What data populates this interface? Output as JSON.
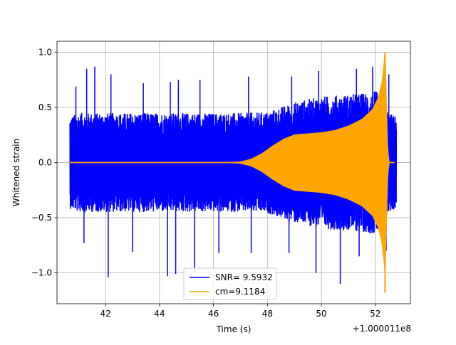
{
  "chart_data": {
    "type": "line",
    "xlabel": "Time (s)",
    "ylabel": "Whitened strain",
    "offset_text": "+1.000011e8",
    "xlim": [
      40.2,
      53.3
    ],
    "ylim": [
      -1.28,
      1.1
    ],
    "grid": true,
    "legend_position": "lower center",
    "xticks": [
      42,
      44,
      46,
      48,
      50,
      52
    ],
    "xtick_labels": [
      "42",
      "44",
      "46",
      "48",
      "50",
      "52"
    ],
    "yticks": [
      -1.0,
      -0.5,
      0.0,
      0.5,
      1.0
    ],
    "ytick_labels": [
      "−1.0",
      "−0.5",
      "0.0",
      "0.5",
      "1.0"
    ],
    "series": [
      {
        "name": "SNR= 9.5932",
        "color": "#0000ff",
        "kind": "noise",
        "x_range": [
          40.68,
          52.78
        ],
        "typical_envelope": [
          [
            40.68,
            0.42
          ],
          [
            41.0,
            0.45
          ],
          [
            42.0,
            0.45
          ],
          [
            43.0,
            0.45
          ],
          [
            44.0,
            0.45
          ],
          [
            45.0,
            0.45
          ],
          [
            46.0,
            0.45
          ],
          [
            47.0,
            0.45
          ],
          [
            48.0,
            0.46
          ],
          [
            49.0,
            0.55
          ],
          [
            50.0,
            0.6
          ],
          [
            51.0,
            0.62
          ],
          [
            51.5,
            0.63
          ],
          [
            52.0,
            0.65
          ],
          [
            52.3,
            0.6
          ],
          [
            52.5,
            0.45
          ],
          [
            52.78,
            0.42
          ]
        ],
        "peaks": [
          [
            40.9,
            0.69
          ],
          [
            41.3,
            0.85
          ],
          [
            41.6,
            0.87
          ],
          [
            42.2,
            0.8
          ],
          [
            43.4,
            0.72
          ],
          [
            44.4,
            0.73
          ],
          [
            44.7,
            0.75
          ],
          [
            45.5,
            0.75
          ],
          [
            47.3,
            0.78
          ],
          [
            48.9,
            0.78
          ],
          [
            49.9,
            0.83
          ],
          [
            51.3,
            0.85
          ],
          [
            51.9,
            0.87
          ],
          [
            52.5,
            0.8
          ]
        ],
        "troughs": [
          [
            41.2,
            -0.73
          ],
          [
            42.1,
            -1.04
          ],
          [
            43.0,
            -0.81
          ],
          [
            44.3,
            -1.03
          ],
          [
            44.6,
            -1.01
          ],
          [
            45.3,
            -0.99
          ],
          [
            46.2,
            -0.82
          ],
          [
            47.4,
            -0.82
          ],
          [
            48.8,
            -0.82
          ],
          [
            49.8,
            -1.0
          ],
          [
            50.7,
            -1.1
          ],
          [
            51.4,
            -0.85
          ],
          [
            52.4,
            -0.8
          ]
        ]
      },
      {
        "name": "cm=9.1184",
        "color": "#ffa500",
        "kind": "chirp",
        "x_range": [
          40.68,
          52.72
        ],
        "envelope": [
          [
            40.68,
            0.0
          ],
          [
            46.6,
            0.0
          ],
          [
            47.0,
            0.005
          ],
          [
            47.4,
            0.03
          ],
          [
            47.8,
            0.08
          ],
          [
            48.2,
            0.15
          ],
          [
            48.6,
            0.21
          ],
          [
            49.0,
            0.25
          ],
          [
            49.5,
            0.26
          ],
          [
            50.0,
            0.27
          ],
          [
            50.5,
            0.29
          ],
          [
            51.0,
            0.33
          ],
          [
            51.5,
            0.39
          ],
          [
            51.9,
            0.48
          ],
          [
            52.1,
            0.58
          ],
          [
            52.25,
            0.72
          ],
          [
            52.33,
            0.9
          ],
          [
            52.36,
            1.0
          ],
          [
            52.4,
            0.6
          ],
          [
            52.45,
            0.15
          ],
          [
            52.5,
            0.0
          ],
          [
            52.72,
            0.0
          ]
        ],
        "min_point": [
          52.36,
          -1.18
        ],
        "max_point": [
          52.36,
          1.0
        ]
      }
    ]
  }
}
